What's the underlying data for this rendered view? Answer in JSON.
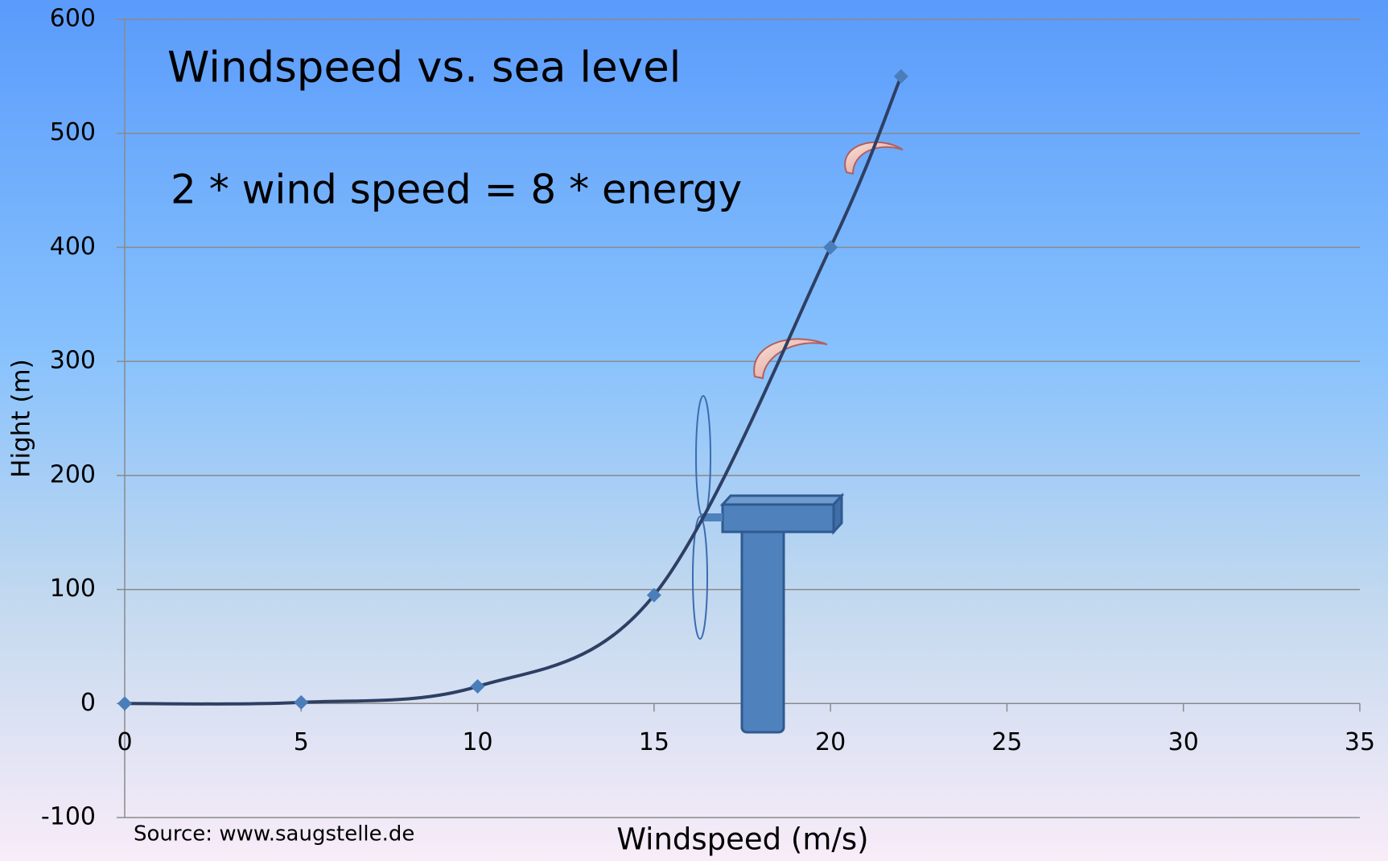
{
  "chart_data": {
    "type": "line",
    "title": "Windspeed vs. sea level",
    "annotation": "2 * wind speed = 8 * energy",
    "source": "Source: www.saugstelle.de",
    "x_label": "Windspeed (m/s)",
    "y_label": "Hight (m)",
    "x": [
      0,
      5,
      10,
      15,
      20,
      22
    ],
    "values": [
      0,
      1,
      15,
      95,
      400,
      550
    ],
    "color": "#2e3f63",
    "marker_color": "#4a7ebb",
    "xlim": [
      0,
      35
    ],
    "xticks": [
      0,
      5,
      10,
      15,
      20,
      25,
      30,
      35
    ],
    "ylim": [
      -100,
      600
    ],
    "yticks": [
      -100,
      0,
      100,
      200,
      300,
      400,
      500,
      600
    ],
    "grid": true,
    "smooth": true
  }
}
